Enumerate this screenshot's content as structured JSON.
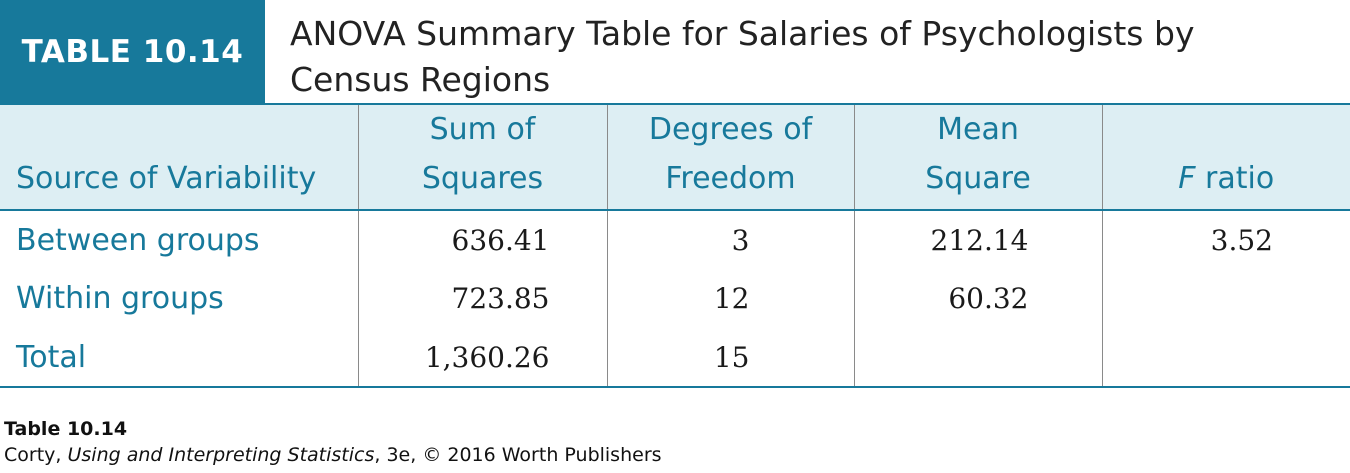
{
  "header": {
    "tag": "TABLE 10.14",
    "title_line1": "ANOVA Summary Table for Salaries of Psychologists by",
    "title_line2": "Census Regions",
    "accent_color": "#17799b"
  },
  "table": {
    "columns": {
      "source": "Source of Variability",
      "ss_line1": "Sum of",
      "ss_line2": "Squares",
      "df_line1": "Degrees of",
      "df_line2": "Freedom",
      "ms_line1": "Mean",
      "ms_line2": "Square",
      "f_italic": "F",
      "f_rest": " ratio"
    },
    "rows": [
      {
        "source": "Between groups",
        "ss": "636.41",
        "df": "3",
        "ms": "212.14",
        "f": "3.52"
      },
      {
        "source": "Within groups",
        "ss": "723.85",
        "df": "12",
        "ms": "60.32",
        "f": ""
      },
      {
        "source": "Total",
        "ss": "1,360.26",
        "df": "15",
        "ms": "",
        "f": ""
      }
    ]
  },
  "caption": {
    "line1": "Table 10.14",
    "author": "Corty, ",
    "book": "Using and Interpreting Statistics",
    "rest": ", 3e, © 2016 Worth Publishers"
  }
}
